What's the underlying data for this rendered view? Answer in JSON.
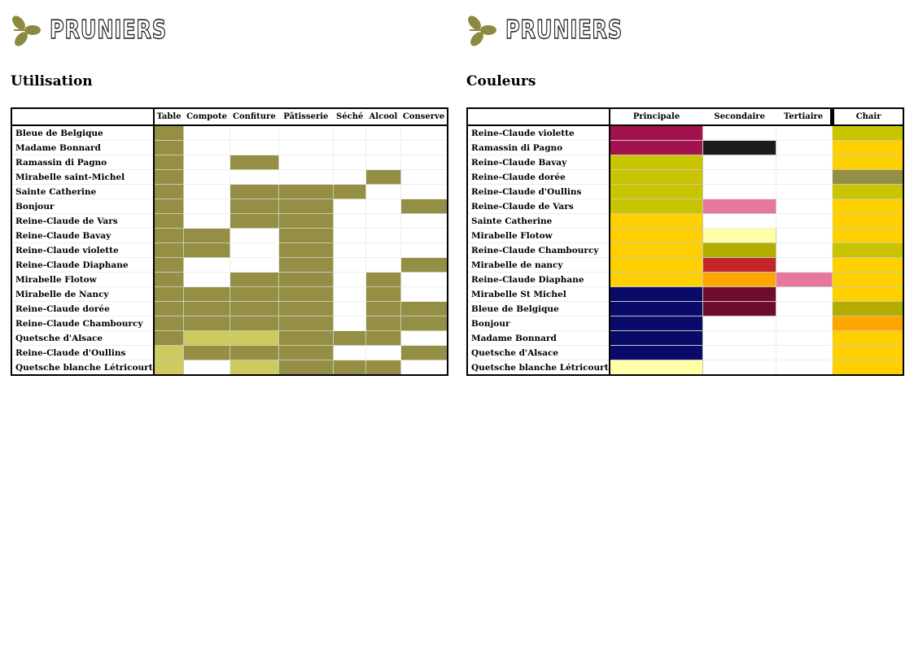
{
  "brand": {
    "name": "PRUNIERS",
    "logo_color": "#8b8a3e"
  },
  "colors": {
    "usage_strong": "#948f44",
    "usage_light": "#cccb5e",
    "empty": "#ffffff"
  },
  "utilisation": {
    "title": "Utilisation",
    "columns": [
      "Table",
      "Compote",
      "Confiture",
      "Pâtisserie",
      "Séché",
      "Alcool",
      "Conserve"
    ],
    "rows": [
      {
        "name": "Bleue de Belgique",
        "levels": [
          2,
          0,
          0,
          0,
          0,
          0,
          0
        ]
      },
      {
        "name": "Madame Bonnard",
        "levels": [
          2,
          0,
          0,
          0,
          0,
          0,
          0
        ]
      },
      {
        "name": "Ramassin di Pagno",
        "levels": [
          2,
          0,
          2,
          0,
          0,
          0,
          0
        ]
      },
      {
        "name": "Mirabelle saint-Michel",
        "levels": [
          2,
          0,
          0,
          0,
          0,
          2,
          0
        ]
      },
      {
        "name": "Sainte Catherine",
        "levels": [
          2,
          0,
          2,
          2,
          2,
          0,
          0
        ]
      },
      {
        "name": "Bonjour",
        "levels": [
          2,
          0,
          2,
          2,
          0,
          0,
          2
        ]
      },
      {
        "name": "Reine-Claude de Vars",
        "levels": [
          2,
          0,
          2,
          2,
          0,
          0,
          0
        ]
      },
      {
        "name": "Reine-Claude Bavay",
        "levels": [
          2,
          2,
          0,
          2,
          0,
          0,
          0
        ]
      },
      {
        "name": "Reine-Claude violette",
        "levels": [
          2,
          2,
          0,
          2,
          0,
          0,
          0
        ]
      },
      {
        "name": "Reine-Claude Diaphane",
        "levels": [
          2,
          0,
          0,
          2,
          0,
          0,
          2
        ]
      },
      {
        "name": "Mirabelle Flotow",
        "levels": [
          2,
          0,
          2,
          2,
          0,
          2,
          0
        ]
      },
      {
        "name": "Mirabelle de Nancy",
        "levels": [
          2,
          2,
          2,
          2,
          0,
          2,
          0
        ]
      },
      {
        "name": "Reine-Claude dorée",
        "levels": [
          2,
          2,
          2,
          2,
          0,
          2,
          2
        ]
      },
      {
        "name": "Reine-Claude Chambourcy",
        "levels": [
          2,
          2,
          2,
          2,
          0,
          2,
          2
        ]
      },
      {
        "name": "Quetsche d'Alsace",
        "levels": [
          2,
          1,
          1,
          2,
          2,
          2,
          0
        ]
      },
      {
        "name": "Reine-Claude d'Oullins",
        "levels": [
          1,
          2,
          2,
          2,
          0,
          0,
          2
        ]
      },
      {
        "name": "Quetsche blanche Létricourt",
        "levels": [
          1,
          0,
          1,
          2,
          2,
          2,
          0
        ]
      }
    ]
  },
  "couleurs": {
    "title": "Couleurs",
    "columns": [
      "Principale",
      "Secondaire",
      "Tertiaire"
    ],
    "chair_column": "Chair",
    "rows": [
      {
        "name": "Reine-Claude violette",
        "colors": [
          "#a3124e",
          "",
          ""
        ],
        "chair": "#c8c400"
      },
      {
        "name": "Ramassin di Pagno",
        "colors": [
          "#a3124e",
          "#1c1c1c",
          ""
        ],
        "chair": "#ffd000"
      },
      {
        "name": "Reine-Claude Bavay",
        "colors": [
          "#c8c400",
          "",
          ""
        ],
        "chair": "#ffd000"
      },
      {
        "name": "Reine-Claude dorée",
        "colors": [
          "#c8c400",
          "",
          ""
        ],
        "chair": "#948f44"
      },
      {
        "name": "Reine-Claude d'Oullins",
        "colors": [
          "#c8c400",
          "",
          ""
        ],
        "chair": "#c8c400"
      },
      {
        "name": "Reine-Claude de Vars",
        "colors": [
          "#c8c400",
          "#e8779f",
          ""
        ],
        "chair": "#ffd000"
      },
      {
        "name": "Sainte Catherine",
        "colors": [
          "#ffd000",
          "",
          ""
        ],
        "chair": "#ffd000"
      },
      {
        "name": "Mirabelle Flotow",
        "colors": [
          "#ffd000",
          "#ffffa8",
          ""
        ],
        "chair": "#ffd000"
      },
      {
        "name": "Reine-Claude Chambourcy",
        "colors": [
          "#ffd000",
          "#b3ad00",
          ""
        ],
        "chair": "#c8c400"
      },
      {
        "name": "Mirabelle de nancy",
        "colors": [
          "#ffd000",
          "#c2282a",
          ""
        ],
        "chair": "#ffd000"
      },
      {
        "name": "Reine-Claude Diaphane",
        "colors": [
          "#ffd000",
          "#ffa500",
          "#e8779f"
        ],
        "chair": "#ffd000"
      },
      {
        "name": "Mirabelle St Michel",
        "colors": [
          "#0a0a6b",
          "#6e0c30",
          ""
        ],
        "chair": "#ffd000"
      },
      {
        "name": "Bleue de Belgique",
        "colors": [
          "#0a0a6b",
          "#6e0c30",
          ""
        ],
        "chair": "#b3ad00"
      },
      {
        "name": "Bonjour",
        "colors": [
          "#0a0a6b",
          "",
          ""
        ],
        "chair": "#ffa500"
      },
      {
        "name": "Madame Bonnard",
        "colors": [
          "#0a0a6b",
          "",
          ""
        ],
        "chair": "#ffd000"
      },
      {
        "name": "Quetsche d'Alsace",
        "colors": [
          "#0a0a6b",
          "",
          ""
        ],
        "chair": "#ffd000"
      },
      {
        "name": "Quetsche blanche Létricourt",
        "colors": [
          "#ffffa8",
          "",
          ""
        ],
        "chair": "#ffd000"
      }
    ]
  }
}
